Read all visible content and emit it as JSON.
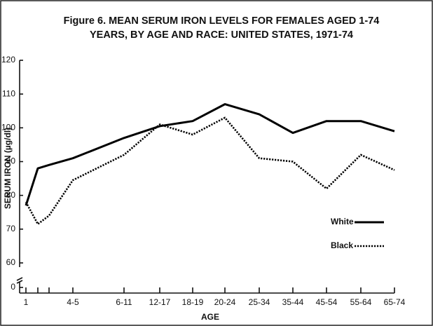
{
  "chart_data": {
    "type": "line",
    "title": "Figure 6. MEAN SERUM IRON LEVELS FOR FEMALES AGED 1-74",
    "subtitle": "YEARS, BY AGE AND RACE: UNITED STATES, 1971-74",
    "x_label": "AGE",
    "y_label": "SERUM IRON (µg/dl)",
    "categories": [
      "1",
      null,
      null,
      "4-5",
      "6-11",
      "12-17",
      "18-19",
      "20-24",
      "25-34",
      "35-44",
      "45-54",
      "55-64",
      "65-74"
    ],
    "series": [
      {
        "name": "White",
        "color": "#000000",
        "style": "solid",
        "values": [
          77,
          88,
          89,
          91,
          97,
          100.5,
          102,
          107,
          104,
          98.5,
          102,
          102,
          99
        ]
      },
      {
        "name": "Black",
        "color": "#000000",
        "style": "dotted",
        "values": [
          78,
          71.5,
          74,
          84.5,
          92,
          101,
          98,
          103,
          91,
          90,
          82,
          92,
          87.5
        ]
      }
    ],
    "ylim": [
      60,
      120
    ],
    "yticks": [
      0,
      60,
      70,
      80,
      90,
      100,
      110,
      120
    ],
    "axis_break": true
  }
}
